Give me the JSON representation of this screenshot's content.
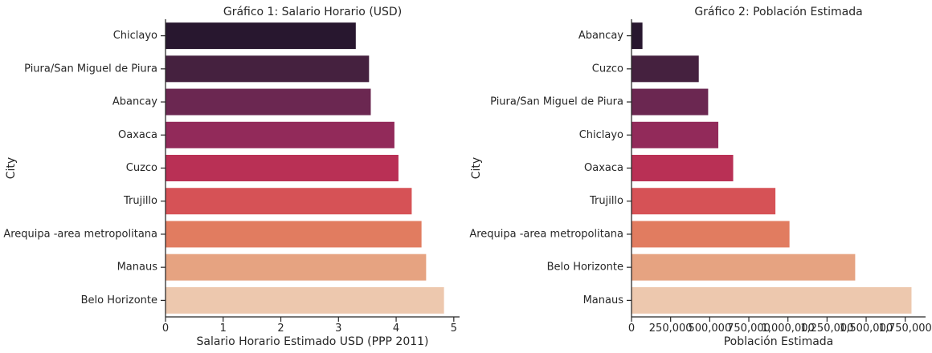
{
  "chart_data": [
    {
      "type": "bar",
      "orientation": "horizontal",
      "title": "Gráfico 1: Salario Horario (USD)",
      "xlabel": "Salario Horario Estimado USD (PPP 2011)",
      "ylabel": "City",
      "categories": [
        "Chiclayo",
        "Piura/San Miguel de Piura",
        "Abancay",
        "Oaxaca",
        "Cuzco",
        "Trujillo",
        "Arequipa -area metropolitana",
        "Manaus",
        "Belo Horizonte"
      ],
      "values": [
        3.3,
        3.53,
        3.56,
        3.97,
        4.04,
        4.27,
        4.44,
        4.52,
        4.83
      ],
      "xlim": [
        0,
        5.1
      ],
      "xticks": [
        0,
        1,
        2,
        3,
        4,
        5
      ],
      "xtick_labels": [
        "0",
        "1",
        "2",
        "3",
        "4",
        "5"
      ],
      "grid": false
    },
    {
      "type": "bar",
      "orientation": "horizontal",
      "title": "Gráfico 2: Población Estimada",
      "xlabel": "Población Estimada",
      "ylabel": "City",
      "categories": [
        "Abancay",
        "Cuzco",
        "Piura/San Miguel de Piura",
        "Chiclayo",
        "Oaxaca",
        "Trujillo",
        "Arequipa -area metropolitana",
        "Belo Horizonte",
        "Manaus"
      ],
      "values": [
        70000,
        430000,
        490000,
        555000,
        650000,
        920000,
        1010000,
        1430000,
        1790000
      ],
      "xlim": [
        0,
        1880000
      ],
      "xticks": [
        0,
        250000,
        500000,
        750000,
        1000000,
        1250000,
        1500000,
        1750000
      ],
      "xtick_labels": [
        "0",
        "250,000",
        "500,000",
        "750,000",
        "1,000,000",
        "1,250,000",
        "1,500,000",
        "1,750,000"
      ],
      "grid": false
    }
  ],
  "palette": [
    "#28172f",
    "#45213f",
    "#6b2751",
    "#922a5a",
    "#b93055",
    "#d65256",
    "#e17c60",
    "#e6a381",
    "#edc8ae"
  ]
}
